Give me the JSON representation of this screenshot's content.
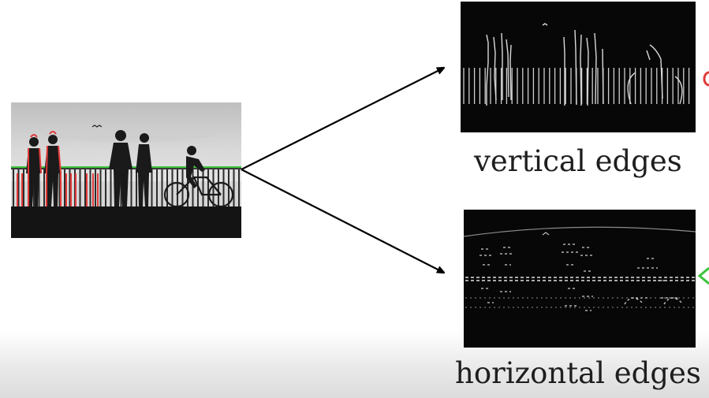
{
  "labels": {
    "vertical": "vertical edges",
    "horizontal": "horizontal edges"
  },
  "colors": {
    "vertical_marker": "#e23a3a",
    "horizontal_marker": "#3cc43c",
    "arrow": "#000000",
    "edge_map_bg": "#070707"
  },
  "icons": {
    "people": "silhouette-figures",
    "cyclist": "bicycle-rider"
  }
}
